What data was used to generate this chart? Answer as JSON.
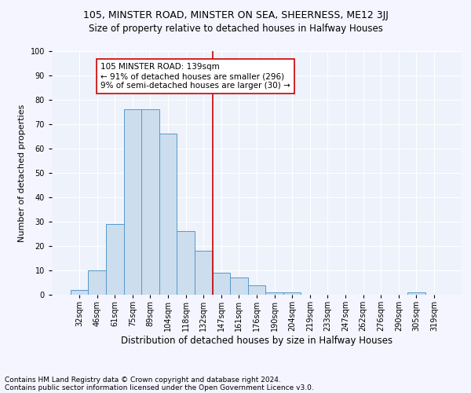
{
  "title": "105, MINSTER ROAD, MINSTER ON SEA, SHEERNESS, ME12 3JJ",
  "subtitle": "Size of property relative to detached houses in Halfway Houses",
  "xlabel": "Distribution of detached houses by size in Halfway Houses",
  "ylabel": "Number of detached properties",
  "bar_labels": [
    "32sqm",
    "46sqm",
    "61sqm",
    "75sqm",
    "89sqm",
    "104sqm",
    "118sqm",
    "132sqm",
    "147sqm",
    "161sqm",
    "176sqm",
    "190sqm",
    "204sqm",
    "219sqm",
    "233sqm",
    "247sqm",
    "262sqm",
    "276sqm",
    "290sqm",
    "305sqm",
    "319sqm"
  ],
  "bar_values": [
    2,
    10,
    29,
    76,
    76,
    66,
    26,
    18,
    9,
    7,
    4,
    1,
    1,
    0,
    0,
    0,
    0,
    0,
    0,
    1,
    0
  ],
  "bar_color": "#ccdded",
  "bar_edge_color": "#5599cc",
  "vline_color": "#cc0000",
  "annotation_text": "105 MINSTER ROAD: 139sqm\n← 91% of detached houses are smaller (296)\n9% of semi-detached houses are larger (30) →",
  "annotation_box_color": "#ffffff",
  "annotation_box_edge": "#cc0000",
  "ylim": [
    0,
    100
  ],
  "footer1": "Contains HM Land Registry data © Crown copyright and database right 2024.",
  "footer2": "Contains public sector information licensed under the Open Government Licence v3.0.",
  "background_color": "#eef2fb",
  "grid_color": "#ffffff",
  "title_fontsize": 9,
  "subtitle_fontsize": 8.5,
  "xlabel_fontsize": 8.5,
  "ylabel_fontsize": 8,
  "tick_fontsize": 7,
  "annotation_fontsize": 7.5,
  "footer_fontsize": 6.5,
  "vline_x_index": 7.5
}
